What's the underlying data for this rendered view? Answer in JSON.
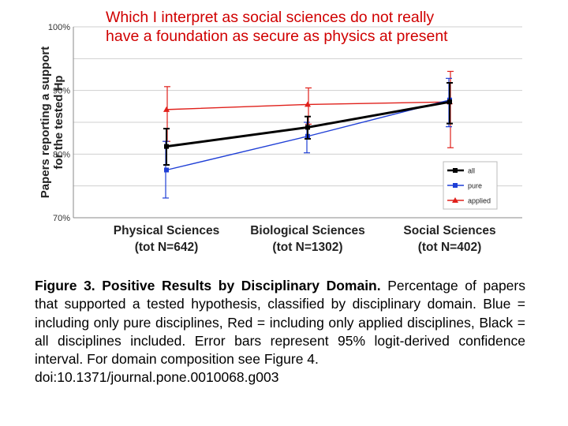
{
  "overlay_text": [
    "Which I interpret as social sciences do not really",
    "have a foundation as secure as physics at present"
  ],
  "caption": {
    "title": "Figure 3. Positive Results by Disciplinary Domain.",
    "body": " Percentage of papers that supported a tested hypothesis, classified by disciplinary domain. Blue = including only pure disciplines, Red = including only applied disciplines, Black = all disciplines included. Error bars represent 95% logit-derived confidence interval. For domain composition see Figure 4.",
    "doi": "doi:10.1371/journal.pone.0010068.g003"
  },
  "chart_data": {
    "type": "line",
    "ylabel": "Papers reporting a support for the tested Hp",
    "ylim": [
      70,
      100
    ],
    "yticks": [
      "70%",
      "80%",
      "90%",
      "100%"
    ],
    "categories": [
      [
        "Physical Sciences",
        "(tot N=642)"
      ],
      [
        "Biological Sciences",
        "(tot N=1302)"
      ],
      [
        "Social Sciences",
        "(tot N=402)"
      ]
    ],
    "grid": true,
    "legend_position": "bottom-right",
    "series": [
      {
        "name": "all",
        "color": "#000000",
        "marker": "square",
        "values": [
          81.2,
          84.2,
          88.2
        ],
        "lower": [
          78.3,
          82.4,
          84.8
        ],
        "upper": [
          84.0,
          85.9,
          91.2
        ]
      },
      {
        "name": "pure",
        "color": "#1f3fd6",
        "marker": "square",
        "values": [
          77.5,
          82.8,
          88.5
        ],
        "lower": [
          73.1,
          80.2,
          84.3
        ],
        "upper": [
          82.0,
          85.0,
          91.9
        ]
      },
      {
        "name": "applied",
        "color": "#e0201b",
        "marker": "triangle",
        "values": [
          87.0,
          87.8,
          88.2
        ],
        "lower": [
          82.0,
          84.7,
          81.0
        ],
        "upper": [
          90.6,
          90.4,
          93.0
        ]
      }
    ]
  }
}
